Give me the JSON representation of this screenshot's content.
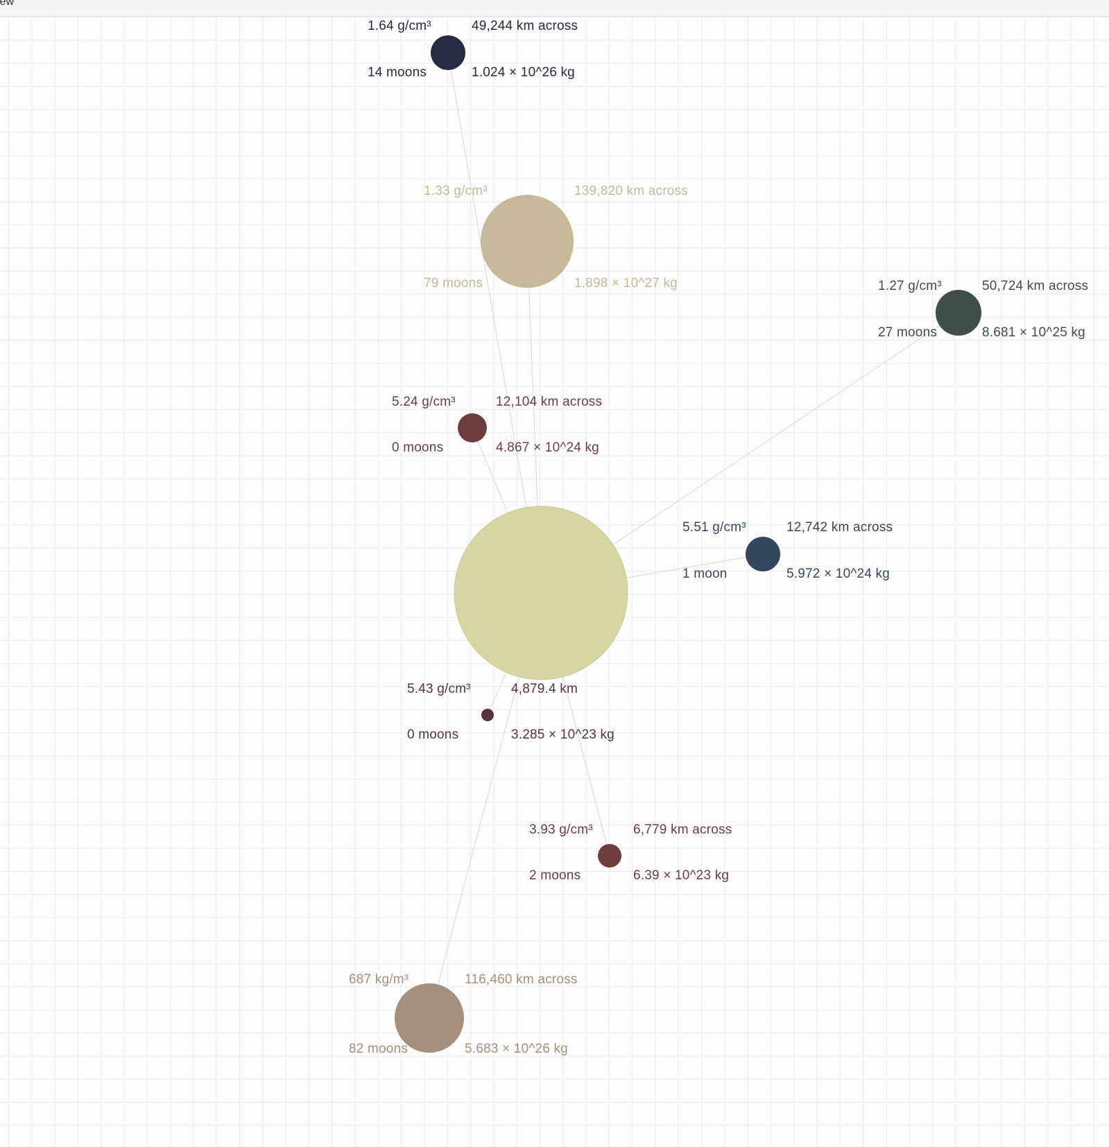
{
  "toolbar": {
    "label": "iew"
  },
  "colors": {
    "edge": "#d9d9d9",
    "grid": "#ececec"
  },
  "center_node": {
    "name": "center-body",
    "color": "#d6d6a2"
  },
  "bodies": [
    {
      "id": "neptune",
      "color": "#262b44",
      "density": "1.64 g/cm³",
      "diameter": "49,244 km across",
      "moons": "14 moons",
      "mass": "1.024 × 10^26 kg"
    },
    {
      "id": "jupiter",
      "color": "#c4ba9a",
      "density": "1.33 g/cm³",
      "diameter": "139,820 km across",
      "moons": "79 moons",
      "mass": "1.898 × 10^27 kg"
    },
    {
      "id": "uranus",
      "color": "#3f4e49",
      "density": "1.27 g/cm³",
      "diameter": "50,724 km across",
      "moons": "27 moons",
      "mass": "8.681 × 10^25 kg"
    },
    {
      "id": "venus",
      "color": "#6e3e3f",
      "density": "5.24 g/cm³",
      "diameter": "12,104 km across",
      "moons": "0 moons",
      "mass": "4.867 × 10^24 kg"
    },
    {
      "id": "earth",
      "color": "#37465f",
      "density": "5.51 g/cm³",
      "diameter": "12,742 km across",
      "moons": "1 moon",
      "mass": "5.972 × 10^24 kg"
    },
    {
      "id": "mercury",
      "color": "#563540",
      "density": "5.43 g/cm³",
      "diameter": "4,879.4 km",
      "moons": "0 moons",
      "mass": "3.285 × 10^23 kg"
    },
    {
      "id": "mars",
      "color": "#6e3e3f",
      "density": "3.93 g/cm³",
      "diameter": "6,779 km across",
      "moons": "2 moons",
      "mass": "6.39 × 10^23 kg"
    },
    {
      "id": "saturn",
      "color": "#a68f7c",
      "density": "687 kg/m³",
      "diameter": "116,460 km across",
      "moons": "82 moons",
      "mass": "5.683 × 10^26 kg"
    }
  ]
}
